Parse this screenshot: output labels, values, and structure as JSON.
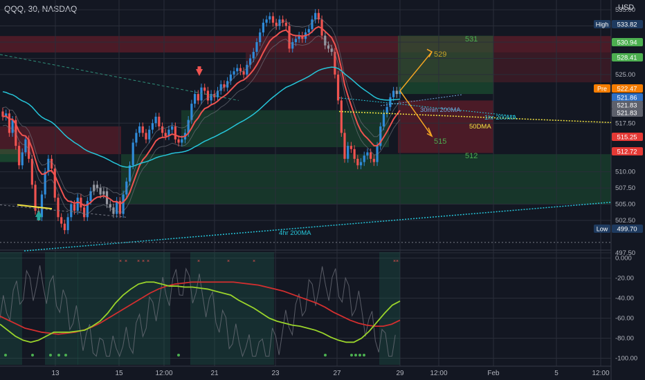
{
  "header": {
    "symbol_line": "QQQ, 30, NASDAQ",
    "currency": "USD"
  },
  "colors": {
    "up": "#2f8bd9",
    "down": "#ef5350",
    "gray_candle": "#9598a1",
    "ema": "#ef5350",
    "ma_teal": "#26c6da",
    "ma_yellow": "#f5e642",
    "osc_green": "#9bd52b",
    "osc_red": "#d32f2f",
    "green_zone": "#1f6f3a",
    "red_zone": "#7a1f2b",
    "arrow": "#f5a623"
  },
  "chart_data": [
    {
      "type": "candlestick",
      "title": "",
      "ylim": [
        496.0,
        536.5
      ],
      "x_ticks": [
        "13",
        "15",
        "12:00",
        "21",
        "23",
        "27",
        "29",
        "12:00",
        "Feb",
        "5",
        "12:00"
      ],
      "y_ticks": [
        "535.00",
        "532.50",
        "530.00",
        "527.50",
        "525.00",
        "517.50",
        "510.00",
        "507.50",
        "505.00",
        "502.50",
        "497.50"
      ],
      "price_labels": [
        {
          "label": "High",
          "value": "533.82"
        },
        {
          "label": "",
          "value": "530.94"
        },
        {
          "label": "",
          "value": "528.41"
        },
        {
          "label": "Pre",
          "value": "522.47"
        },
        {
          "label": "",
          "value": "521.86"
        },
        {
          "label": "",
          "value": "521.83"
        },
        {
          "label": "",
          "value": "521.83"
        },
        {
          "label": "",
          "value": "515.25"
        },
        {
          "label": "",
          "value": "512.72"
        },
        {
          "label": "Low",
          "value": "499.70"
        }
      ],
      "targets": [
        "531",
        "529",
        "515",
        "512"
      ],
      "annotations": [
        "30min 200MA",
        "1hr 200MA",
        "50DMA",
        "4hr 200MA"
      ],
      "close_series": [
        518.5,
        519.0,
        516.0,
        518.0,
        514.0,
        511.0,
        513.0,
        515.0,
        512.0,
        508.0,
        504.0,
        503.0,
        506.5,
        510.0,
        512.0,
        510.5,
        506.0,
        503.0,
        502.0,
        501.0,
        503.0,
        505.0,
        504.0,
        506.0,
        504.5,
        503.0,
        505.5,
        507.0,
        508.0,
        507.5,
        506.5,
        507.0,
        505.0,
        504.5,
        503.5,
        505.5,
        503.5,
        506.5,
        508.5,
        511.0,
        514.5,
        516.0,
        517.0,
        516.0,
        515.0,
        516.5,
        517.5,
        518.5,
        517.0,
        516.0,
        515.5,
        516.5,
        517.0,
        515.0,
        514.5,
        515.0,
        516.0,
        518.0,
        520.5,
        522.0,
        521.0,
        523.0,
        522.5,
        521.0,
        522.0,
        521.5,
        522.5,
        523.5,
        523.0,
        524.0,
        525.0,
        525.5,
        526.0,
        525.5,
        525.0,
        526.5,
        527.5,
        528.5,
        530.0,
        531.5,
        533.0,
        533.5,
        534.0,
        533.0,
        532.5,
        533.5,
        533.0,
        532.5,
        529.0,
        530.0,
        530.5,
        531.0,
        530.5,
        531.5,
        532.0,
        533.5,
        534.5,
        533.5,
        531.0,
        529.5,
        529.0,
        528.5,
        525.0,
        521.0,
        516.0,
        512.0,
        514.0,
        513.5,
        512.0,
        511.0,
        511.5,
        512.5,
        513.0,
        512.0,
        511.5,
        514.0,
        517.0,
        519.0,
        520.0,
        521.5,
        522.5,
        522.0,
        522.5
      ]
    },
    {
      "type": "line",
      "title": "",
      "ylim": [
        -101.0,
        1.0
      ],
      "y_ticks": [
        "0.000",
        "-20.00",
        "-40.00",
        "-60.00",
        "-80.00",
        "-100.00"
      ],
      "series": [
        {
          "values": [
            -66,
            -72,
            -78,
            -82,
            -84,
            -82,
            -78,
            -74,
            -74,
            -74,
            -73,
            -72,
            -68,
            -63,
            -55,
            -45,
            -37,
            -31,
            -26,
            -24,
            -24,
            -26,
            -28,
            -28,
            -29,
            -29,
            -30,
            -31,
            -33,
            -35,
            -37,
            -42,
            -46,
            -50,
            -55,
            -60,
            -63,
            -65,
            -67,
            -68,
            -70,
            -72,
            -75,
            -79,
            -82,
            -84,
            -84,
            -80,
            -73,
            -64,
            -55,
            -47,
            -43
          ]
        },
        {
          "values": [
            -58,
            -62,
            -66,
            -70,
            -72,
            -74,
            -75,
            -76,
            -75,
            -74,
            -72,
            -69,
            -65,
            -60,
            -55,
            -50,
            -45,
            -40,
            -35,
            -31,
            -28,
            -26,
            -25,
            -24,
            -24,
            -24,
            -24,
            -24,
            -24,
            -25,
            -26,
            -27,
            -29,
            -31,
            -33,
            -36,
            -39,
            -42,
            -45,
            -49,
            -54,
            -58,
            -62,
            -65,
            -67,
            -68,
            -68,
            -66,
            -62
          ]
        }
      ]
    }
  ]
}
